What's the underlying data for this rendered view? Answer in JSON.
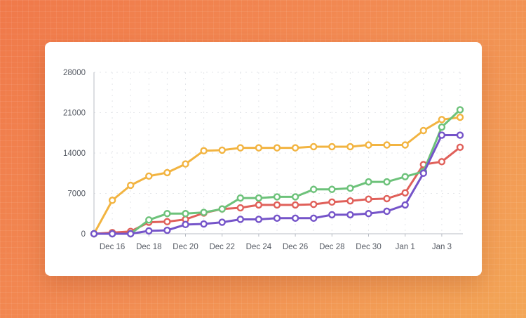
{
  "chart_data": {
    "type": "line",
    "title": "",
    "xlabel": "",
    "ylabel": "",
    "ylim": [
      0,
      28000
    ],
    "yticks": [
      0,
      7000,
      14000,
      21000,
      28000
    ],
    "ytick_labels": [
      "0",
      "7000",
      "14000",
      "21000",
      "28000"
    ],
    "x": [
      "Dec 15",
      "Dec 16",
      "Dec 17",
      "Dec 18",
      "Dec 19",
      "Dec 20",
      "Dec 21",
      "Dec 22",
      "Dec 23",
      "Dec 24",
      "Dec 25",
      "Dec 26",
      "Dec 27",
      "Dec 28",
      "Dec 29",
      "Dec 30",
      "Dec 31",
      "Jan 1",
      "Jan 2",
      "Jan 3",
      "Jan 4"
    ],
    "xtick_labels": [
      "Dec 16",
      "Dec 18",
      "Dec 20",
      "Dec 22",
      "Dec 24",
      "Dec 26",
      "Dec 28",
      "Dec 30",
      "Jan 1",
      "Jan 3"
    ],
    "grid": true,
    "legend": "none",
    "series": [
      {
        "color": "#f2b441",
        "values": [
          0,
          5800,
          8400,
          10000,
          10600,
          12100,
          14400,
          14500,
          14900,
          14900,
          14900,
          14900,
          15100,
          15100,
          15100,
          15400,
          15400,
          15400,
          17900,
          19800,
          20200
        ]
      },
      {
        "color": "#e0605a",
        "values": [
          0,
          200,
          400,
          2000,
          2100,
          2500,
          3600,
          4300,
          4500,
          5000,
          5000,
          5000,
          5100,
          5500,
          5700,
          6000,
          6100,
          7100,
          12000,
          12500,
          15000
        ]
      },
      {
        "color": "#6dc27a",
        "values": [
          0,
          0,
          0,
          2400,
          3500,
          3500,
          3700,
          4300,
          6200,
          6200,
          6400,
          6400,
          7700,
          7700,
          7900,
          9000,
          9000,
          9900,
          10800,
          18500,
          21500
        ]
      },
      {
        "color": "#7554c9",
        "values": [
          0,
          0,
          0,
          500,
          600,
          1600,
          1700,
          2000,
          2500,
          2500,
          2700,
          2700,
          2700,
          3300,
          3300,
          3500,
          3900,
          5000,
          10500,
          17100,
          17100
        ]
      }
    ]
  }
}
